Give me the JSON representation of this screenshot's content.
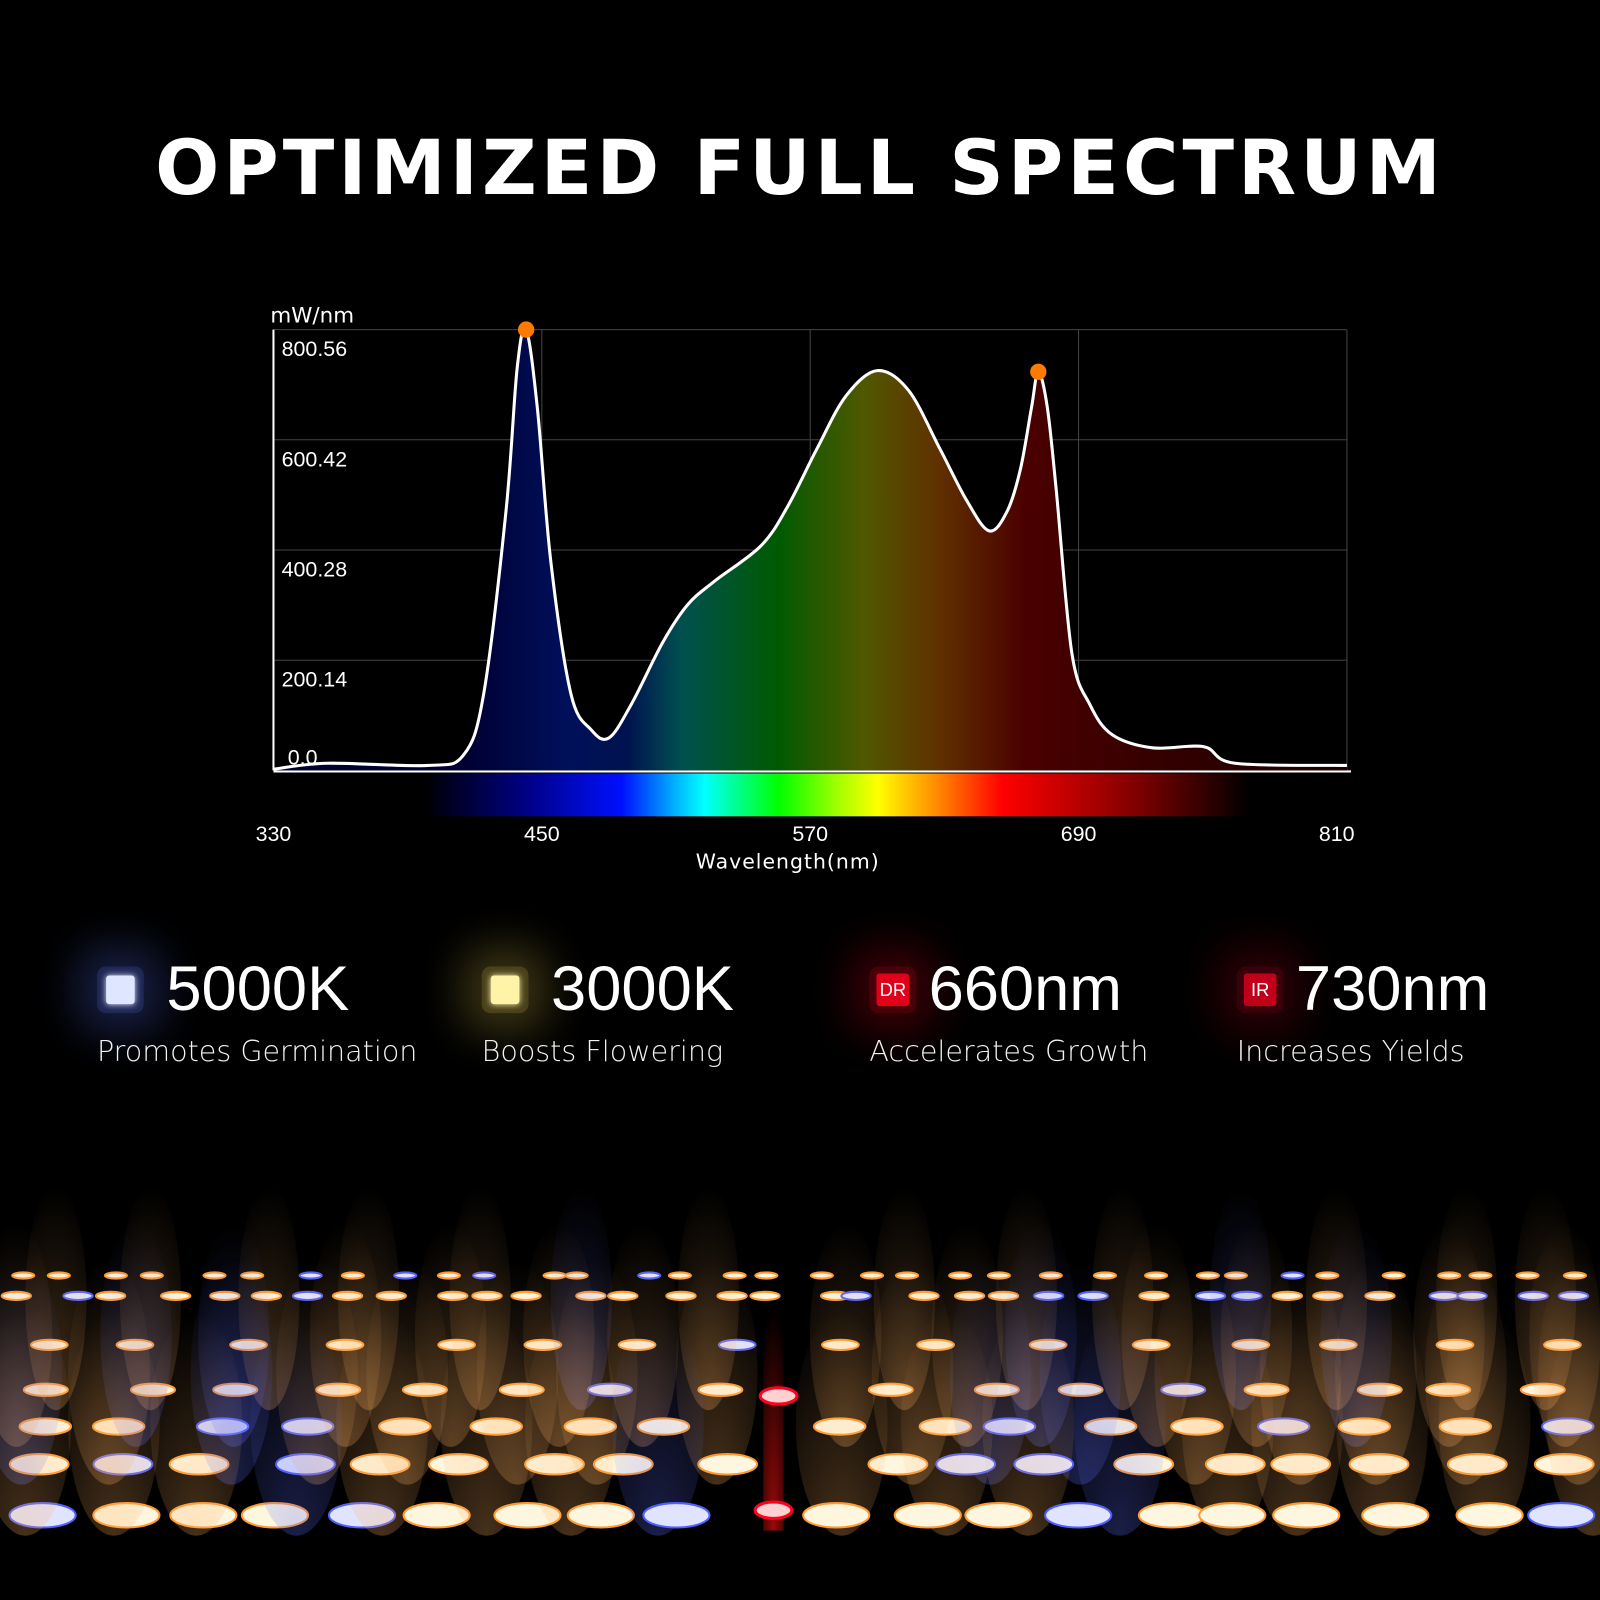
{
  "title": "OPTIMIZED FULL SPECTRUM",
  "chart_data": {
    "type": "area",
    "ylabel": "mW/nm",
    "xlabel": "Wavelength(nm)",
    "xlim": [
      330,
      810
    ],
    "ylim": [
      0,
      800.56
    ],
    "xticks": [
      "330",
      "450",
      "570",
      "690",
      "810"
    ],
    "yticks": [
      "0.0",
      "200.14",
      "400.28",
      "600.42",
      "800.56"
    ],
    "grid": true,
    "x": [
      330,
      354,
      399,
      415,
      424,
      434,
      439,
      443,
      448,
      454,
      463,
      472,
      480,
      490,
      504,
      515,
      527,
      548,
      560,
      573,
      586,
      600,
      614,
      628,
      640,
      650,
      658,
      664,
      669,
      672,
      676,
      680,
      687,
      695,
      705,
      723,
      746,
      760,
      810
    ],
    "y": [
      2,
      13,
      9,
      28,
      139,
      472,
      732,
      800,
      658,
      380,
      139,
      74,
      59,
      120,
      232,
      300,
      343,
      408,
      480,
      584,
      680,
      726,
      690,
      584,
      490,
      435,
      470,
      547,
      660,
      724,
      660,
      510,
      213,
      120,
      65,
      41,
      43,
      13,
      9
    ],
    "peak_markers": [
      [
        443,
        800.56
      ],
      [
        672,
        724
      ]
    ],
    "marker_color": "#ff7a00",
    "line_color": "#ffffff"
  },
  "features": [
    {
      "value": "5000K",
      "desc": "Promotes Germination",
      "chip_color": "#dfe6ff",
      "glow": "#3a4aa0"
    },
    {
      "value": "3000K",
      "desc": "Boosts Flowering",
      "chip_color": "#fff3a8",
      "glow": "#8a7a30"
    },
    {
      "value": "660nm",
      "desc": "Accelerates Growth",
      "chip_label": "DR",
      "chip_color": "#e0001a",
      "glow": "#8a0010"
    },
    {
      "value": "730nm",
      "desc": "Increases Yields",
      "chip_label": "IR",
      "chip_color": "#c0001a",
      "glow": "#6a0010"
    }
  ]
}
